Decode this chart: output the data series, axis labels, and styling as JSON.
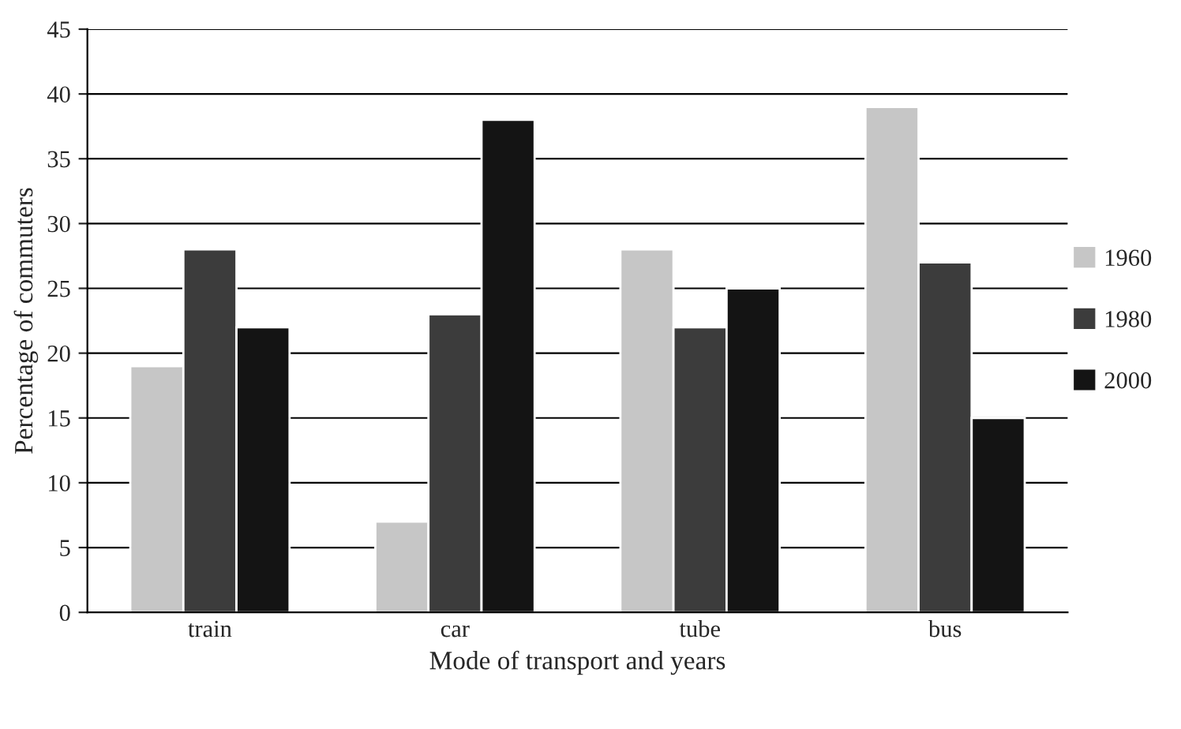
{
  "chart_data": {
    "type": "bar",
    "xlabel": "Mode of transport and years",
    "ylabel": "Percentage of commuters",
    "categories": [
      "train",
      "car",
      "tube",
      "bus"
    ],
    "series": [
      {
        "name": "1960",
        "color": "#c6c6c6",
        "values": [
          19,
          7,
          28,
          39
        ]
      },
      {
        "name": "1980",
        "color": "#3c3c3c",
        "values": [
          28,
          23,
          22,
          27
        ]
      },
      {
        "name": "2000",
        "color": "#141414",
        "values": [
          22,
          38,
          25,
          15
        ]
      }
    ],
    "ylim": [
      0,
      45
    ],
    "yticks": [
      0,
      5,
      10,
      15,
      20,
      25,
      30,
      35,
      40,
      45
    ],
    "grid": "y",
    "legend": "right"
  }
}
